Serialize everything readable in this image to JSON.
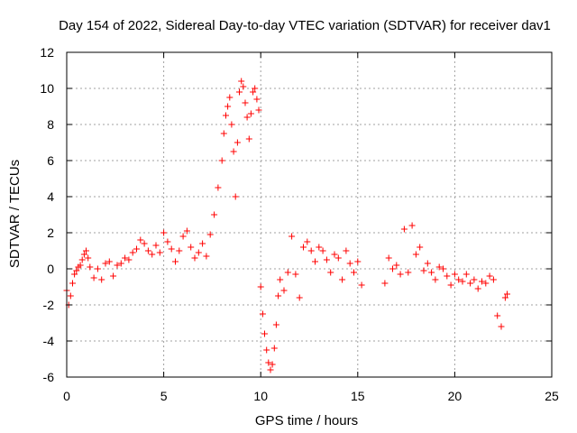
{
  "chart_data": {
    "type": "scatter",
    "title": "Day 154 of 2022, Sidereal Day-to-day VTEC variation (SDTVAR) for receiver dav1",
    "xlabel": "GPS time / hours",
    "ylabel": "SDTVAR / TECUs",
    "xlim": [
      0,
      25
    ],
    "ylim": [
      -6,
      12
    ],
    "xticks": [
      0,
      5,
      10,
      15,
      20,
      25
    ],
    "yticks": [
      -6,
      -4,
      -2,
      0,
      2,
      4,
      6,
      8,
      10,
      12
    ],
    "grid": true,
    "marker": "+",
    "color": "#ff0000",
    "series": [
      {
        "name": "SDTVAR",
        "x": [
          0.0,
          0.1,
          0.2,
          0.3,
          0.4,
          0.5,
          0.6,
          0.7,
          0.8,
          0.9,
          1.0,
          1.1,
          1.2,
          1.4,
          1.6,
          1.8,
          2.0,
          2.2,
          2.4,
          2.6,
          2.8,
          3.0,
          3.2,
          3.4,
          3.6,
          3.8,
          4.0,
          4.2,
          4.4,
          4.6,
          4.8,
          5.0,
          5.2,
          5.4,
          5.6,
          5.8,
          6.0,
          6.2,
          6.4,
          6.6,
          6.8,
          7.0,
          7.2,
          7.4,
          7.6,
          7.8,
          8.0,
          8.1,
          8.2,
          8.3,
          8.4,
          8.5,
          8.6,
          8.7,
          8.8,
          8.9,
          9.0,
          9.1,
          9.2,
          9.3,
          9.4,
          9.5,
          9.6,
          9.7,
          9.8,
          9.9,
          10.0,
          10.1,
          10.2,
          10.3,
          10.4,
          10.5,
          10.6,
          10.7,
          10.8,
          10.9,
          11.0,
          11.2,
          11.4,
          11.6,
          11.8,
          12.0,
          12.2,
          12.4,
          12.6,
          12.8,
          13.0,
          13.2,
          13.4,
          13.6,
          13.8,
          14.0,
          14.2,
          14.4,
          14.6,
          14.8,
          15.0,
          15.2,
          16.4,
          16.6,
          16.8,
          17.0,
          17.2,
          17.4,
          17.6,
          17.8,
          18.0,
          18.2,
          18.4,
          18.6,
          18.8,
          19.0,
          19.2,
          19.4,
          19.6,
          19.8,
          20.0,
          20.2,
          20.4,
          20.6,
          20.8,
          21.0,
          21.2,
          21.4,
          21.6,
          21.8,
          22.0,
          22.2,
          22.4,
          22.6,
          22.7
        ],
        "y": [
          -1.2,
          -2.0,
          -1.5,
          -0.8,
          -0.3,
          -0.1,
          0.1,
          0.2,
          0.5,
          0.8,
          1.0,
          0.6,
          0.1,
          -0.5,
          0.0,
          -0.6,
          0.3,
          0.4,
          -0.4,
          0.2,
          0.3,
          0.6,
          0.5,
          0.9,
          1.1,
          1.6,
          1.4,
          1.0,
          0.8,
          1.3,
          0.9,
          2.0,
          1.5,
          1.1,
          0.4,
          1.0,
          1.8,
          2.1,
          1.2,
          0.6,
          0.9,
          1.4,
          0.7,
          1.9,
          3.0,
          4.5,
          6.0,
          7.5,
          8.5,
          9.0,
          9.5,
          8.0,
          6.5,
          4.0,
          7.0,
          9.8,
          10.4,
          10.1,
          9.2,
          8.4,
          7.2,
          8.6,
          9.8,
          10.0,
          9.4,
          8.8,
          -1.0,
          -2.5,
          -3.6,
          -4.5,
          -5.2,
          -5.6,
          -5.3,
          -4.4,
          -3.1,
          -1.5,
          -0.6,
          -1.2,
          -0.2,
          1.8,
          -0.3,
          -1.6,
          1.2,
          1.5,
          1.0,
          0.4,
          1.2,
          1.0,
          0.5,
          -0.2,
          0.8,
          0.6,
          -0.6,
          1.0,
          0.3,
          -0.2,
          0.4,
          -0.9,
          -0.8,
          0.6,
          0.0,
          0.2,
          -0.3,
          2.2,
          -0.2,
          2.4,
          0.8,
          1.2,
          -0.1,
          0.3,
          -0.2,
          -0.6,
          0.1,
          0.0,
          -0.4,
          -0.9,
          -0.3,
          -0.6,
          -0.7,
          -0.3,
          -0.8,
          -0.6,
          -1.1,
          -0.7,
          -0.8,
          -0.4,
          -0.6,
          -2.6,
          -3.2,
          -1.6,
          -1.4
        ]
      }
    ]
  }
}
